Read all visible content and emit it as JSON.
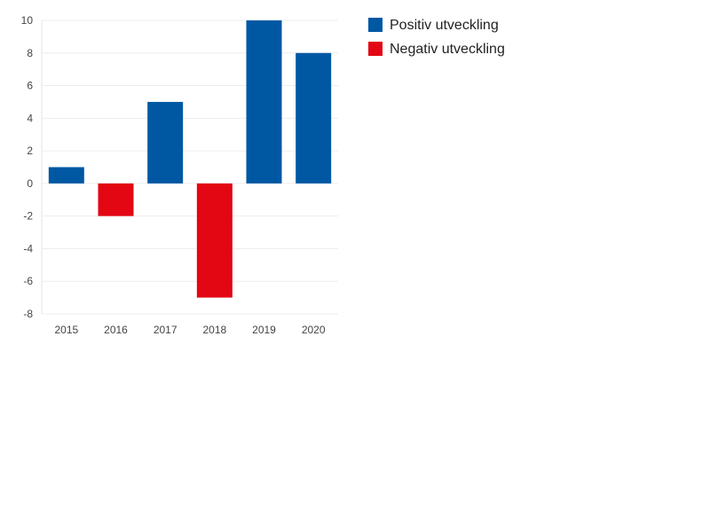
{
  "chart_data": {
    "type": "bar",
    "title": "",
    "xlabel": "",
    "ylabel": "",
    "categories": [
      "2015",
      "2016",
      "2017",
      "2018",
      "2019",
      "2020"
    ],
    "values": [
      1,
      -2,
      5,
      -7,
      10,
      8
    ],
    "ylim": [
      -8,
      10
    ],
    "yticks": [
      "10",
      "8",
      "6",
      "4",
      "2",
      "0",
      "-2",
      "-4",
      "-6",
      "-8"
    ],
    "grid": true,
    "legend_position": "top-right",
    "legend": [
      {
        "key": "positive",
        "label": "Positiv utveckling",
        "color": "#0058A3"
      },
      {
        "key": "negative",
        "label": "Negativ utveckling",
        "color": "#E30613"
      }
    ]
  }
}
